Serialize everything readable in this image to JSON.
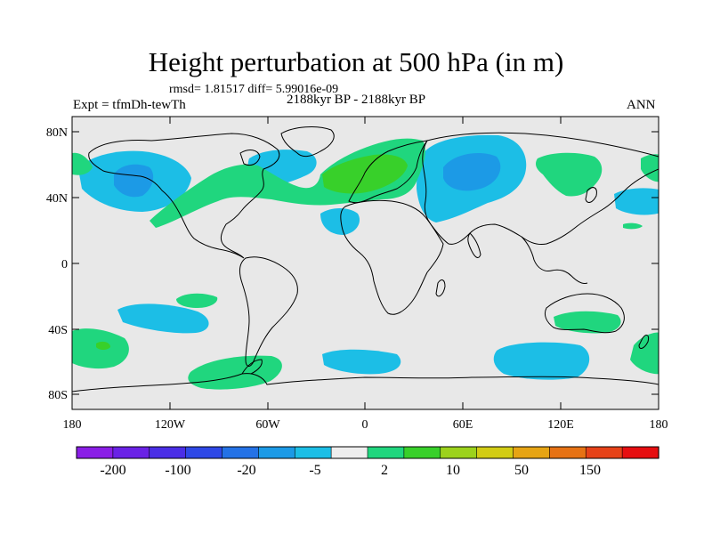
{
  "title": "Height perturbation at 500 hPa (in m)",
  "stats": "rmsd= 1.81517 diff= 5.99016e-09",
  "expt": "Expt = tfmDh-tewTh",
  "period": "2188kyr BP - 2188kyr BP",
  "season": "ANN",
  "lat_labels": [
    "80N",
    "40N",
    "0",
    "40S",
    "80S"
  ],
  "lon_labels": [
    "180",
    "120W",
    "60W",
    "0",
    "60E",
    "120E",
    "180"
  ],
  "colorbar": {
    "colors": [
      "#8a1ee6",
      "#6a22e6",
      "#4a2ee6",
      "#2e48e6",
      "#2472e6",
      "#1c9ae6",
      "#1cbee6",
      "#eeeeee",
      "#20d67e",
      "#38d02a",
      "#9cd21c",
      "#d2cc14",
      "#e6a414",
      "#e67214",
      "#e64218",
      "#e60e10"
    ],
    "labels": [
      "-200",
      "-100",
      "-20",
      "-5",
      "2",
      "10",
      "50",
      "150"
    ]
  },
  "map_colors": {
    "background": "#e8e8e8",
    "neg_light": "#1cbee6",
    "neg_mid": "#1c9ae6",
    "pos_light": "#20d67e",
    "pos_mid": "#38d02a",
    "coast": "#000000"
  }
}
